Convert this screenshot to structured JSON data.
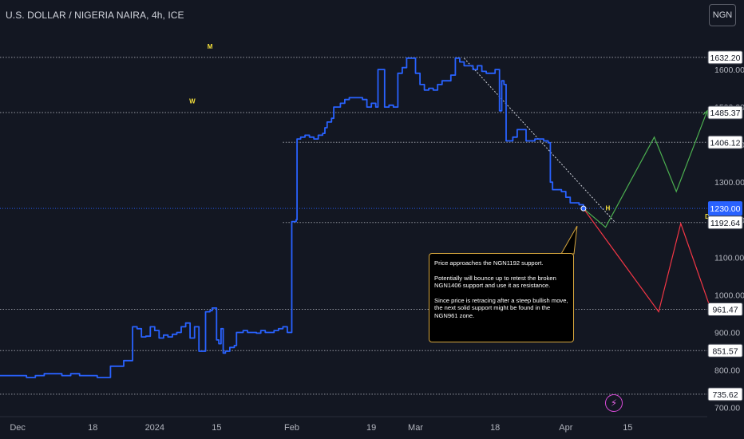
{
  "header": {
    "symbol_title": "U.S. DOLLAR / NIGERIA NAIRA, 4h, ICE",
    "currency_button": "NGN"
  },
  "colors": {
    "background": "#131722",
    "price_line": "#2962ff",
    "grid_text": "#b2b5be",
    "hline": "#9598a1",
    "bullish_path": "#4caf50",
    "bearish_path": "#f23645",
    "marker_yellow": "#f7e23b",
    "current_price_bg": "#2962ff"
  },
  "icons": {
    "alert": "lightning-bolt-icon"
  },
  "annotation": {
    "paragraphs": [
      "Price approaches the NGN1192 support.",
      "Potentially will bounce up to retest the broken NGN1406 support and use it as resistance.",
      "Since price is retracing after a steep bullish move, the next solid support might be found in the NGN961 zone."
    ]
  },
  "chart_data": {
    "type": "line",
    "xlabels": [
      {
        "label": "Dec",
        "x": 0
      },
      {
        "label": "18",
        "x": 17
      },
      {
        "label": "2024",
        "x": 31
      },
      {
        "label": "15",
        "x": 45
      },
      {
        "label": "Feb",
        "x": 62
      },
      {
        "label": "19",
        "x": 80
      },
      {
        "label": "Mar",
        "x": 90
      },
      {
        "label": "18",
        "x": 108
      },
      {
        "label": "Apr",
        "x": 124
      },
      {
        "label": "15",
        "x": 138
      }
    ],
    "yticks": [
      700,
      800,
      900,
      1000,
      1100,
      1200,
      1300,
      1400,
      1500,
      1600
    ],
    "ylim": [
      680,
      1700
    ],
    "xlim": [
      -4,
      156
    ],
    "series": [
      {
        "values": [
          [
            -4,
            785
          ],
          [
            0,
            785
          ],
          [
            2,
            780
          ],
          [
            4,
            785
          ],
          [
            6,
            790
          ],
          [
            8,
            790
          ],
          [
            10,
            785
          ],
          [
            12,
            790
          ],
          [
            14,
            785
          ],
          [
            16,
            785
          ],
          [
            18,
            780
          ],
          [
            20,
            780
          ],
          [
            21,
            810
          ],
          [
            23,
            810
          ],
          [
            24,
            825
          ],
          [
            25,
            825
          ],
          [
            26,
            915
          ],
          [
            27,
            910
          ],
          [
            28,
            888
          ],
          [
            29,
            890
          ],
          [
            30,
            915
          ],
          [
            31,
            905
          ],
          [
            32,
            885
          ],
          [
            33,
            893
          ],
          [
            34,
            888
          ],
          [
            35,
            895
          ],
          [
            36,
            900
          ],
          [
            37,
            915
          ],
          [
            38,
            925
          ],
          [
            39,
            885
          ],
          [
            40,
            915
          ],
          [
            41,
            850
          ],
          [
            42,
            850
          ],
          [
            42.5,
            955
          ],
          [
            43.5,
            958
          ],
          [
            44,
            965
          ],
          [
            44.5,
            965
          ],
          [
            45,
            880
          ],
          [
            45.5,
            870
          ],
          [
            46,
            910
          ],
          [
            46.5,
            845
          ],
          [
            47,
            850
          ],
          [
            48,
            860
          ],
          [
            49,
            865
          ],
          [
            49.5,
            900
          ],
          [
            51,
            905
          ],
          [
            52,
            900
          ],
          [
            54,
            898
          ],
          [
            55,
            905
          ],
          [
            56,
            900
          ],
          [
            58,
            905
          ],
          [
            59,
            910
          ],
          [
            60,
            915
          ],
          [
            61,
            900
          ],
          [
            62,
            1195
          ],
          [
            63,
            1200
          ],
          [
            63.2,
            1415
          ],
          [
            64,
            1420
          ],
          [
            65,
            1425
          ],
          [
            66,
            1420
          ],
          [
            67,
            1415
          ],
          [
            68,
            1425
          ],
          [
            69,
            1430
          ],
          [
            69.5,
            1445
          ],
          [
            70,
            1460
          ],
          [
            71,
            1470
          ],
          [
            71.5,
            1500
          ],
          [
            73,
            1510
          ],
          [
            74,
            1520
          ],
          [
            75,
            1525
          ],
          [
            76,
            1525
          ],
          [
            78,
            1520
          ],
          [
            79,
            1500
          ],
          [
            80,
            1510
          ],
          [
            81,
            1500
          ],
          [
            81.5,
            1600
          ],
          [
            82,
            1600
          ],
          [
            83,
            1500
          ],
          [
            84,
            1505
          ],
          [
            85,
            1500
          ],
          [
            86,
            1590
          ],
          [
            87,
            1605
          ],
          [
            88,
            1630
          ],
          [
            89,
            1630
          ],
          [
            90,
            1590
          ],
          [
            91,
            1560
          ],
          [
            92,
            1545
          ],
          [
            93,
            1550
          ],
          [
            94,
            1545
          ],
          [
            95,
            1560
          ],
          [
            96,
            1570
          ],
          [
            97,
            1570
          ],
          [
            98,
            1585
          ],
          [
            99,
            1630
          ],
          [
            100,
            1620
          ],
          [
            101,
            1610
          ],
          [
            102,
            1610
          ],
          [
            103,
            1600
          ],
          [
            104,
            1610
          ],
          [
            105,
            1595
          ],
          [
            106,
            1590
          ],
          [
            107,
            1590
          ],
          [
            108,
            1600
          ],
          [
            109,
            1490
          ],
          [
            109.5,
            1570
          ],
          [
            110,
            1560
          ],
          [
            110.5,
            1410
          ],
          [
            111,
            1410
          ],
          [
            112,
            1420
          ],
          [
            113,
            1440
          ],
          [
            114,
            1440
          ],
          [
            115,
            1410
          ],
          [
            116,
            1410
          ],
          [
            117,
            1415
          ],
          [
            118,
            1415
          ],
          [
            119,
            1410
          ],
          [
            120,
            1405
          ],
          [
            120.5,
            1300
          ],
          [
            121,
            1280
          ],
          [
            122,
            1280
          ],
          [
            123,
            1275
          ],
          [
            124,
            1260
          ],
          [
            125,
            1245
          ],
          [
            126,
            1245
          ],
          [
            127,
            1240
          ],
          [
            128,
            1230
          ]
        ]
      }
    ],
    "current_price": {
      "value": 1230.0,
      "label": "1230.00"
    },
    "price_labels": [
      {
        "value": 1632.2,
        "label": "1632.20"
      },
      {
        "value": 1485.37,
        "label": "1485.37"
      },
      {
        "value": 1406.12,
        "label": "1406.12"
      },
      {
        "value": 1192.64,
        "label": "1192.64"
      },
      {
        "value": 961.47,
        "label": "961.47"
      },
      {
        "value": 851.57,
        "label": "851.57"
      },
      {
        "value": 735.62,
        "label": "735.62"
      }
    ],
    "horizontal_lines": [
      {
        "value": 1632.2,
        "x_start": -4
      },
      {
        "value": 1485.37,
        "x_start": -4
      },
      {
        "value": 1406.12,
        "x_start": 60
      },
      {
        "value": 1192.64,
        "x_start": 60
      },
      {
        "value": 961.47,
        "x_start": -4
      },
      {
        "value": 851.57,
        "x_start": -4
      },
      {
        "value": 735.62,
        "x_start": -4
      }
    ],
    "trendline": [
      [
        101,
        1630
      ],
      [
        135,
        1195
      ]
    ],
    "projection_bullish": [
      [
        128,
        1230
      ],
      [
        133,
        1180
      ],
      [
        144,
        1420
      ],
      [
        149,
        1275
      ],
      [
        156,
        1490
      ]
    ],
    "projection_bearish": [
      [
        128,
        1230
      ],
      [
        145,
        955
      ],
      [
        150,
        1190
      ],
      [
        157,
        955
      ]
    ],
    "markers": [
      {
        "text": "M",
        "x": 43.5,
        "y": 1655
      },
      {
        "text": "W",
        "x": 39.5,
        "y": 1510
      },
      {
        "text": "H",
        "x": 133.5,
        "y": 1225
      },
      {
        "text": "D",
        "x": 156,
        "y": 1203
      }
    ]
  }
}
